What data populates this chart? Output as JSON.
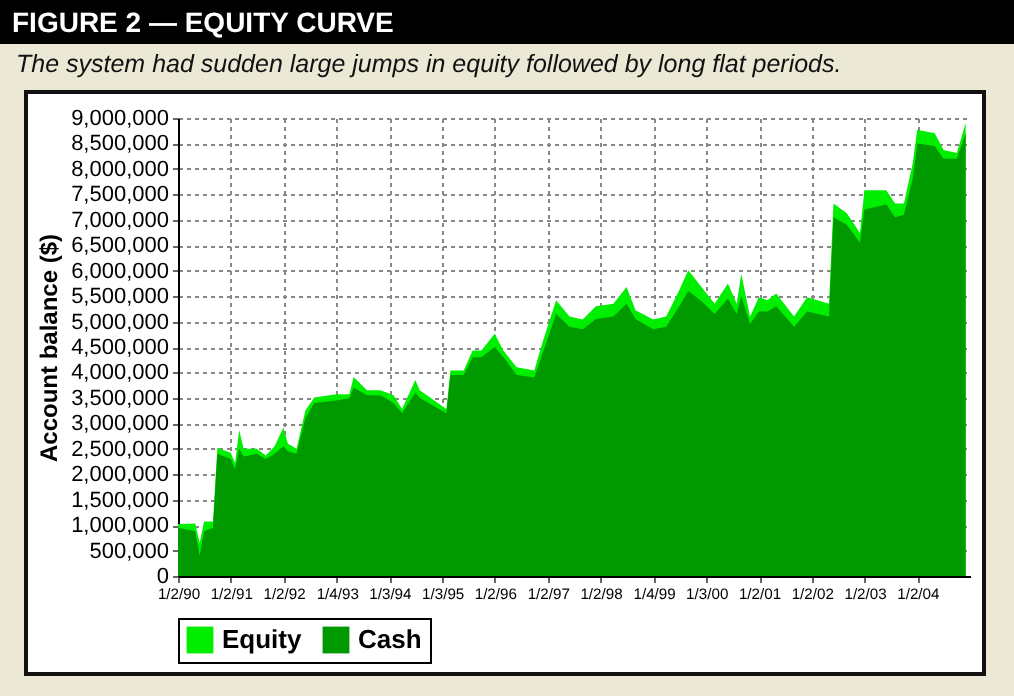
{
  "chart_data": {
    "type": "area",
    "title": "FIGURE 2 — EQUITY CURVE",
    "subtitle": "The system had sudden large jumps in equity followed by long flat periods.",
    "ylabel": "Account balance ($)",
    "x": [
      "1990-01-02",
      "1990-05",
      "1990-06",
      "1990-07",
      "1990-09",
      "1990-10",
      "1991-01",
      "1991-02",
      "1991-03",
      "1991-04",
      "1991-07",
      "1991-09",
      "1991-11",
      "1992-01",
      "1992-02",
      "1992-04",
      "1992-06",
      "1992-08",
      "1993-01",
      "1993-04",
      "1993-05",
      "1993-08",
      "1993-11",
      "1994-02",
      "1994-04",
      "1994-07",
      "1994-08",
      "1995-02",
      "1995-03",
      "1995-06",
      "1995-08",
      "1995-10",
      "1996-01",
      "1996-03",
      "1996-06",
      "1996-10",
      "1996-12",
      "1997-03",
      "1997-06",
      "1997-09",
      "1997-12",
      "1998-04",
      "1998-07",
      "1998-09",
      "1999-01",
      "1999-04",
      "1999-07",
      "1999-09",
      "1999-12",
      "2000-03",
      "2000-06",
      "2000-08",
      "2000-09",
      "2000-11",
      "2001-01",
      "2001-03",
      "2001-05",
      "2001-09",
      "2001-12",
      "2002-05",
      "2002-06",
      "2002-09",
      "2002-12",
      "2003-01",
      "2003-06",
      "2003-08",
      "2003-10",
      "2003-12",
      "2004-01",
      "2004-05",
      "2004-07",
      "2004-10",
      "2004-12"
    ],
    "series": [
      {
        "name": "Equity",
        "color": "#00ee00",
        "values": [
          1020000,
          1030000,
          650000,
          1070000,
          1070000,
          2520000,
          2420000,
          2220000,
          2870000,
          2500000,
          2500000,
          2370000,
          2550000,
          2920000,
          2600000,
          2500000,
          3250000,
          3510000,
          3570000,
          3570000,
          3910000,
          3650000,
          3650000,
          3550000,
          3280000,
          3850000,
          3650000,
          3280000,
          4040000,
          4040000,
          4430000,
          4430000,
          4760000,
          4430000,
          4100000,
          4040000,
          4630000,
          5420000,
          5100000,
          5040000,
          5300000,
          5350000,
          5680000,
          5220000,
          5040000,
          5100000,
          5620000,
          6010000,
          5680000,
          5350000,
          5750000,
          5350000,
          5940000,
          5100000,
          5480000,
          5420000,
          5550000,
          5100000,
          5480000,
          5350000,
          7320000,
          7130000,
          6740000,
          7580000,
          7580000,
          7320000,
          7320000,
          8110000,
          8770000,
          8700000,
          8370000,
          8310000,
          8900000
        ]
      },
      {
        "name": "Cash",
        "color": "#009900",
        "values": [
          950000,
          880000,
          400000,
          880000,
          950000,
          2400000,
          2300000,
          2100000,
          2500000,
          2350000,
          2400000,
          2300000,
          2400000,
          2550000,
          2450000,
          2400000,
          3100000,
          3400000,
          3450000,
          3500000,
          3700000,
          3550000,
          3550000,
          3400000,
          3200000,
          3600000,
          3500000,
          3200000,
          3950000,
          3950000,
          4300000,
          4300000,
          4500000,
          4300000,
          3950000,
          3900000,
          4400000,
          5150000,
          4900000,
          4850000,
          5050000,
          5100000,
          5350000,
          5050000,
          4850000,
          4900000,
          5300000,
          5600000,
          5400000,
          5150000,
          5450000,
          5150000,
          5500000,
          4950000,
          5200000,
          5200000,
          5300000,
          4900000,
          5200000,
          5100000,
          7050000,
          6900000,
          6550000,
          7200000,
          7300000,
          7050000,
          7100000,
          7800000,
          8500000,
          8450000,
          8200000,
          8200000,
          8700000
        ]
      }
    ],
    "xlim": [
      "1990-01-02",
      "2004-12-31"
    ],
    "xticks": [
      {
        "value": "1990-01-02",
        "label": "1/2/90"
      },
      {
        "value": "1991-01-02",
        "label": "1/2/91"
      },
      {
        "value": "1992-01-02",
        "label": "1/2/92"
      },
      {
        "value": "1993-01-04",
        "label": "1/4/93"
      },
      {
        "value": "1994-01-03",
        "label": "1/3/94"
      },
      {
        "value": "1995-01-03",
        "label": "1/3/95"
      },
      {
        "value": "1996-01-02",
        "label": "1/2/96"
      },
      {
        "value": "1997-01-02",
        "label": "1/2/97"
      },
      {
        "value": "1998-01-02",
        "label": "1/2/98"
      },
      {
        "value": "1999-01-04",
        "label": "1/4/99"
      },
      {
        "value": "2000-01-03",
        "label": "1/3/00"
      },
      {
        "value": "2001-01-02",
        "label": "1/2/01"
      },
      {
        "value": "2002-01-02",
        "label": "1/2/02"
      },
      {
        "value": "2003-01-02",
        "label": "1/2/03"
      },
      {
        "value": "2004-01-02",
        "label": "1/2/04"
      }
    ],
    "ylim": [
      0,
      9000000
    ],
    "yticks": [
      0,
      {
        "value": 500000,
        "label": "500,000"
      },
      {
        "value": 1000000,
        "label": "1,000,000"
      },
      {
        "value": 1500000,
        "label": "1,500,000"
      },
      {
        "value": 2000000,
        "label": "2,000,000"
      },
      {
        "value": 2500000,
        "label": "2,500,000"
      },
      {
        "value": 3000000,
        "label": "3,000,000"
      },
      {
        "value": 3500000,
        "label": "3,500,000"
      },
      {
        "value": 4000000,
        "label": "4,000,000"
      },
      {
        "value": 4500000,
        "label": "4,500,000"
      },
      {
        "value": 5000000,
        "label": "5,000,000"
      },
      {
        "value": 5500000,
        "label": "5,500,000"
      },
      {
        "value": 6000000,
        "label": "6,000,000"
      },
      {
        "value": 6500000,
        "label": "6,500,000"
      },
      {
        "value": 7000000,
        "label": "7,000,000"
      },
      {
        "value": 7500000,
        "label": "7,500,000"
      },
      {
        "value": 8000000,
        "label": "8,000,000"
      },
      {
        "value": 8500000,
        "label": "8,500,000"
      },
      {
        "value": 9000000,
        "label": "9,000,000"
      }
    ],
    "grid": true,
    "legend": "bottom"
  }
}
